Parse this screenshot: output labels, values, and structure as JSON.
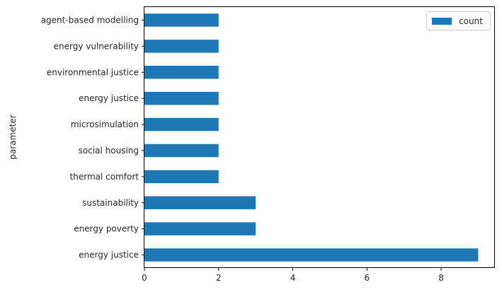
{
  "chart_data": {
    "type": "bar",
    "orientation": "horizontal",
    "categories": [
      "energy justice",
      "energy poverty",
      "sustainability",
      "thermal comfort",
      "social housing",
      "microsimulation",
      "energy justice",
      "environmental justice",
      "energy vulnerability",
      "agent-based modelling"
    ],
    "series": [
      {
        "name": "count",
        "values": [
          9,
          3,
          3,
          2,
          2,
          2,
          2,
          2,
          2,
          2
        ]
      }
    ],
    "xlabel": "",
    "ylabel": "parameter",
    "xlim": [
      0,
      9.45
    ],
    "xticks": [
      "0",
      "2",
      "4",
      "6",
      "8"
    ],
    "grid": false,
    "legend_position": "top-right",
    "color": "#1f77b4"
  }
}
